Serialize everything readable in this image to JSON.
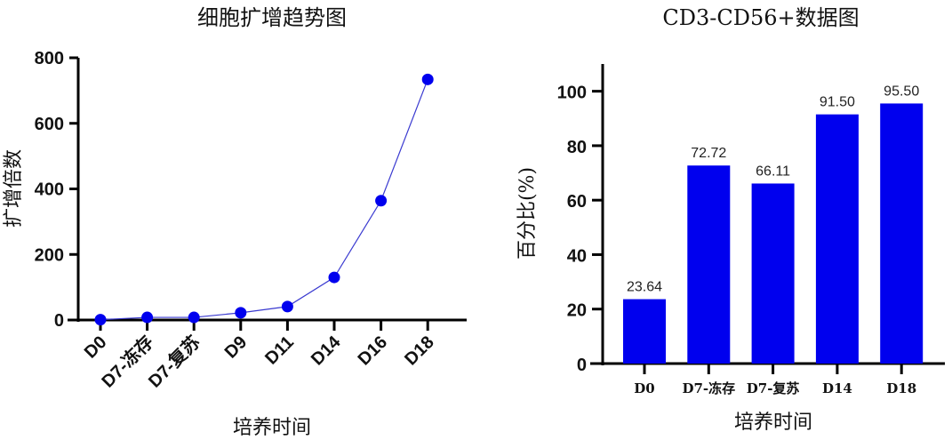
{
  "chart_data": [
    {
      "type": "line",
      "title": "细胞扩增趋势图",
      "xlabel": "培养时间",
      "ylabel": "扩增倍数",
      "categories": [
        "D0",
        "D7-冻存",
        "D7-复苏",
        "D9",
        "D11",
        "D14",
        "D16",
        "D18"
      ],
      "values": [
        1,
        8,
        8,
        22,
        41,
        130,
        364,
        734
      ],
      "ylim": [
        0,
        800
      ],
      "yticks": [
        0,
        200,
        400,
        600,
        800
      ],
      "color": "#0000ee",
      "grid": false
    },
    {
      "type": "bar",
      "title": "CD3-CD56+数据图",
      "xlabel": "培养时间",
      "ylabel": "百分比(%)",
      "categories": [
        "D0",
        "D7-冻存",
        "D7-复苏",
        "D14",
        "D18"
      ],
      "values": [
        23.64,
        72.72,
        66.11,
        91.5,
        95.5
      ],
      "data_labels": [
        "23.64",
        "72.72",
        "66.11",
        "91.50",
        "95.50"
      ],
      "ylim": [
        0,
        110
      ],
      "yticks": [
        0,
        20,
        40,
        60,
        80,
        100
      ],
      "color": "#0000ee",
      "grid": false
    }
  ]
}
